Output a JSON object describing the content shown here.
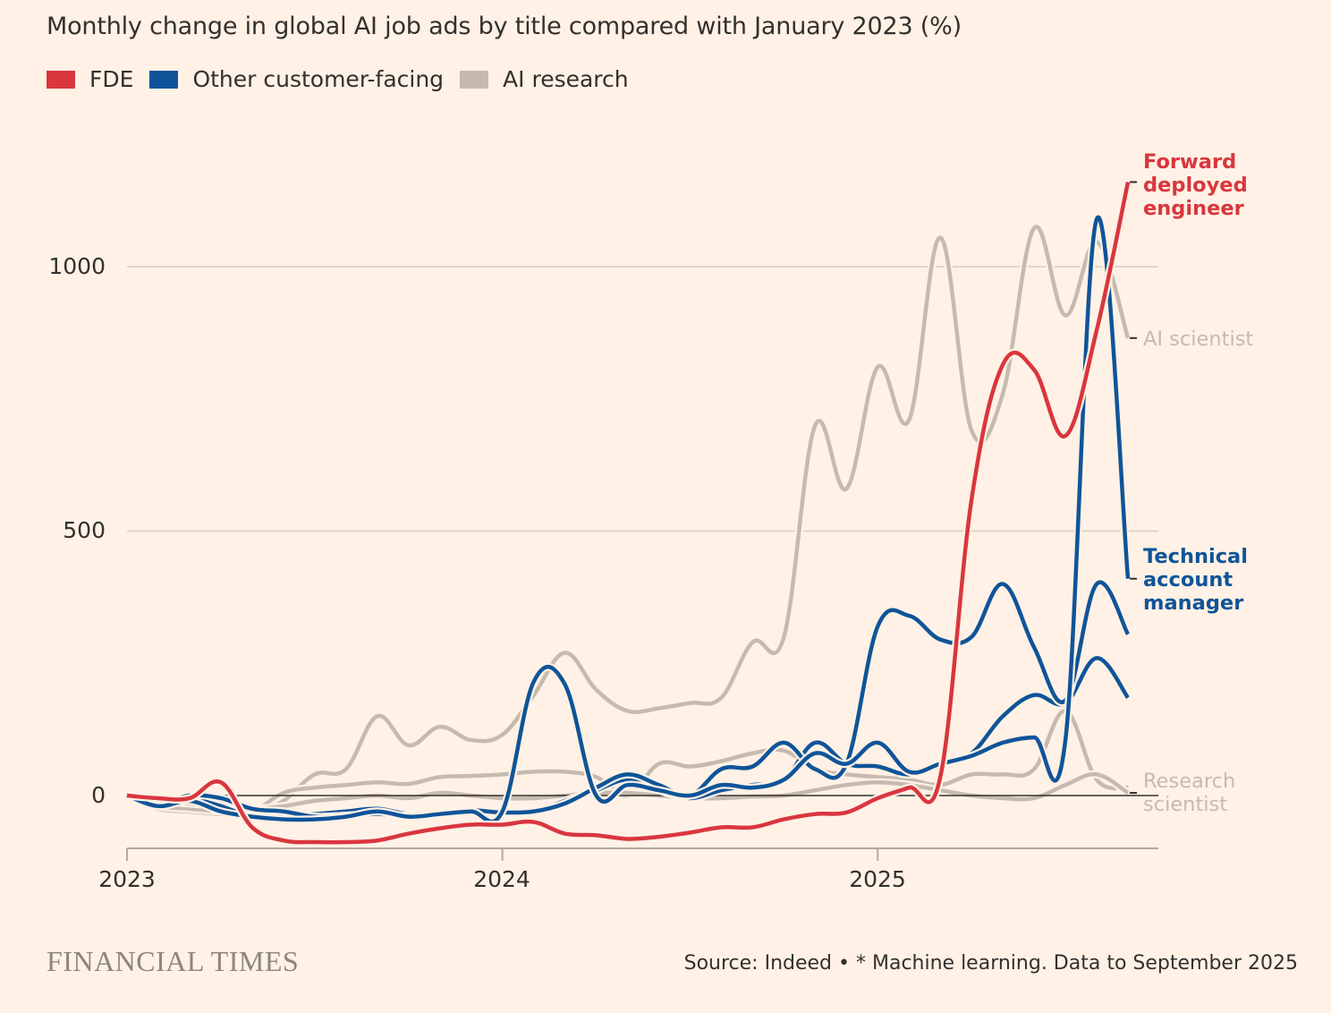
{
  "colors": {
    "fde": "#D9363E",
    "customer_facing": "#0F5499",
    "ai_research": "#C6BAB0",
    "background": "#FFF1E5",
    "zero_line": "#33302E",
    "grid": "#D6CCC2"
  },
  "chart_data": {
    "type": "line",
    "title": "Monthly change in global AI job ads by title compared with January 2023 (%)",
    "xlabel": "",
    "ylabel": "",
    "x": [
      "2023-01",
      "2023-02",
      "2023-03",
      "2023-04",
      "2023-05",
      "2023-06",
      "2023-07",
      "2023-08",
      "2023-09",
      "2023-10",
      "2023-11",
      "2023-12",
      "2024-01",
      "2024-02",
      "2024-03",
      "2024-04",
      "2024-05",
      "2024-06",
      "2024-07",
      "2024-08",
      "2024-09",
      "2024-10",
      "2024-11",
      "2024-12",
      "2025-01",
      "2025-02",
      "2025-03",
      "2025-04",
      "2025-05",
      "2025-06",
      "2025-07",
      "2025-08",
      "2025-09"
    ],
    "x_ticks": [
      "2023",
      "2024",
      "2025"
    ],
    "y_ticks": [
      "0",
      "500",
      "1000"
    ],
    "ylim": [
      -100,
      1200
    ],
    "grid": "horizontal",
    "legend_position": "top-left",
    "legend": [
      {
        "label": "FDE",
        "group": "fde"
      },
      {
        "label": "Other customer-facing",
        "group": "customer_facing"
      },
      {
        "label": "AI research",
        "group": "ai_research"
      }
    ],
    "series": [
      {
        "name": "AI scientist",
        "group": "ai_research",
        "values": [
          0,
          -25,
          -30,
          -35,
          -35,
          -10,
          40,
          50,
          150,
          95,
          130,
          105,
          115,
          190,
          270,
          200,
          160,
          165,
          175,
          185,
          290,
          300,
          700,
          580,
          810,
          710,
          1055,
          690,
          760,
          1073,
          908,
          1047,
          865
        ]
      },
      {
        "group": "ai_research",
        "values": [
          0,
          -20,
          -25,
          -30,
          -30,
          5,
          15,
          20,
          25,
          22,
          35,
          37,
          40,
          45,
          45,
          35,
          0,
          60,
          55,
          65,
          80,
          85,
          50,
          40,
          35,
          30,
          20,
          40,
          40,
          50,
          160,
          30,
          15
        ]
      },
      {
        "name": "Research scientist",
        "group": "ai_research",
        "values": [
          0,
          -10,
          -15,
          -20,
          -25,
          -20,
          -10,
          -5,
          0,
          -5,
          5,
          0,
          -5,
          -5,
          0,
          5,
          5,
          0,
          -5,
          -5,
          -2,
          0,
          10,
          20,
          25,
          20,
          10,
          0,
          -5,
          -5,
          20,
          40,
          5
        ]
      },
      {
        "group": "customer_facing",
        "values": [
          0,
          -5,
          -5,
          -20,
          -40,
          -40,
          -35,
          -30,
          -25,
          -35,
          -35,
          -30,
          -30,
          -30,
          -10,
          10,
          30,
          10,
          -5,
          10,
          20,
          30,
          100,
          60,
          55,
          40,
          60,
          80,
          150,
          190,
          175,
          260,
          185
        ]
      },
      {
        "group": "customer_facing",
        "values": [
          0,
          -15,
          0,
          -5,
          -25,
          -30,
          -40,
          -38,
          -35,
          -38,
          -32,
          -28,
          -32,
          -30,
          -15,
          15,
          40,
          20,
          0,
          50,
          55,
          100,
          50,
          60,
          320,
          340,
          295,
          300,
          400,
          280,
          180,
          400,
          305
        ]
      },
      {
        "name": "Technical account manager",
        "group": "customer_facing",
        "values": [
          0,
          -20,
          -10,
          -30,
          -40,
          -45,
          -45,
          -40,
          -30,
          -40,
          -35,
          -30,
          -30,
          215,
          210,
          0,
          20,
          10,
          0,
          20,
          15,
          30,
          80,
          60,
          100,
          45,
          60,
          75,
          100,
          110,
          105,
          1090,
          410
        ]
      },
      {
        "name": "Forward deployed engineer",
        "group": "fde",
        "values": [
          0,
          -5,
          -5,
          25,
          -60,
          -85,
          -88,
          -88,
          -85,
          -72,
          -62,
          -55,
          -55,
          -50,
          -72,
          -75,
          -82,
          -78,
          -70,
          -60,
          -60,
          -45,
          -35,
          -32,
          -5,
          15,
          35,
          560,
          815,
          805,
          680,
          880,
          1160
        ]
      }
    ]
  },
  "footer": {
    "logo": "FINANCIAL TIMES",
    "source": "Source: Indeed • * Machine learning. Data to September 2025"
  }
}
